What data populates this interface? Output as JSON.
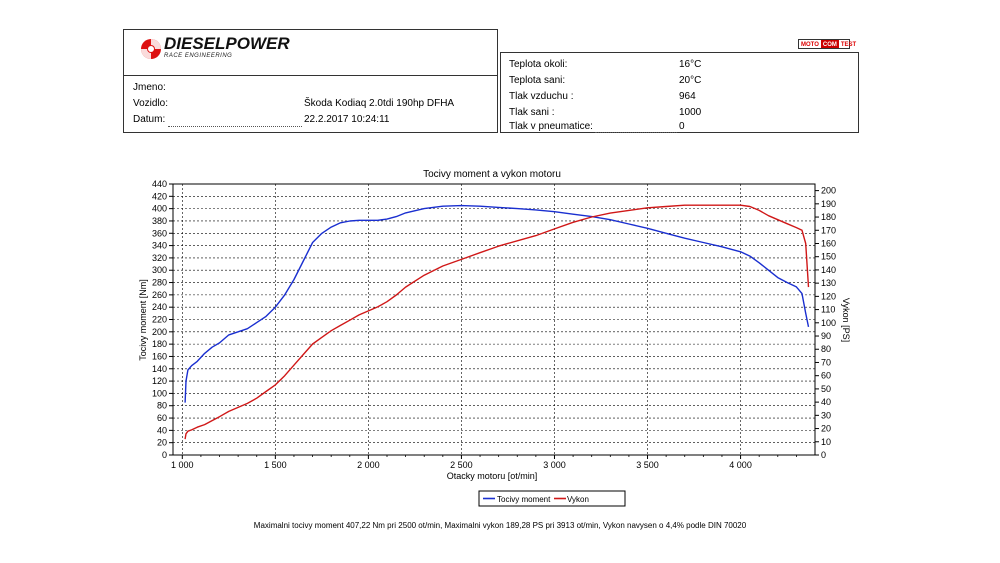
{
  "logo": {
    "brand": "DIESELPOWER",
    "tagline": "RACE ENGINEERING"
  },
  "badge": {
    "part1": "MOTO",
    "part2": "COM",
    "part3": "TEST"
  },
  "vehicle_info": {
    "name_label": "Jmeno:",
    "name_value": "",
    "vehicle_label": "Vozidlo:",
    "vehicle_value": "Škoda Kodiaq 2.0tdi 190hp DFHA",
    "date_label": "Datum:",
    "date_value": "22.2.2017 10:24:11"
  },
  "conditions": [
    {
      "label": "Teplota okoli:",
      "value": "16°C"
    },
    {
      "label": "Teplota sani:",
      "value": "20°C"
    },
    {
      "label": "Tlak vzduchu :",
      "value": "964"
    },
    {
      "label": "Tlak sani :",
      "value": "1000"
    },
    {
      "label": "Tlak v pneumatice:",
      "value": "0"
    }
  ],
  "chart_data": {
    "type": "line",
    "title": "Tocivy moment a vykon motoru",
    "xlabel": "Otacky motoru [ot/min]",
    "ylabel": "Tocivy moment [Nm]",
    "y2label": "Vykon [PS]",
    "xlim": [
      950,
      4400
    ],
    "ylim": [
      0,
      440
    ],
    "y2lim": [
      0,
      205
    ],
    "x_ticks": [
      1000,
      1500,
      2000,
      2500,
      3000,
      3500,
      4000
    ],
    "x_tick_labels": [
      "1 000",
      "1 500",
      "2 000",
      "2 500",
      "3 000",
      "3 500",
      "4 000"
    ],
    "y_ticks": [
      0,
      20,
      40,
      60,
      80,
      100,
      120,
      140,
      160,
      180,
      200,
      220,
      240,
      260,
      280,
      300,
      320,
      340,
      360,
      380,
      400,
      420,
      440
    ],
    "y2_ticks": [
      0,
      10,
      20,
      30,
      40,
      50,
      60,
      70,
      80,
      90,
      100,
      110,
      120,
      130,
      140,
      150,
      160,
      170,
      180,
      190,
      200
    ],
    "grid": true,
    "legend_position": "bottom-center",
    "series": [
      {
        "name": "Tocivy moment",
        "color": "#1a2fd0",
        "axis": "left",
        "x": [
          1015,
          1020,
          1030,
          1050,
          1080,
          1120,
          1160,
          1200,
          1250,
          1300,
          1350,
          1400,
          1450,
          1500,
          1550,
          1600,
          1650,
          1700,
          1750,
          1800,
          1850,
          1900,
          1950,
          2000,
          2050,
          2100,
          2150,
          2200,
          2300,
          2400,
          2500,
          2600,
          2700,
          2800,
          2900,
          3000,
          3100,
          3200,
          3300,
          3400,
          3500,
          3600,
          3700,
          3800,
          3900,
          4000,
          4050,
          4100,
          4150,
          4200,
          4250,
          4300,
          4330,
          4350,
          4365
        ],
        "values": [
          85,
          120,
          138,
          145,
          152,
          165,
          175,
          182,
          195,
          200,
          205,
          215,
          225,
          240,
          260,
          285,
          315,
          345,
          360,
          370,
          377,
          380,
          381,
          381,
          381,
          383,
          387,
          393,
          400,
          404,
          405,
          404,
          402,
          400,
          398,
          395,
          391,
          387,
          382,
          375,
          368,
          360,
          352,
          345,
          338,
          330,
          323,
          312,
          300,
          288,
          280,
          273,
          262,
          230,
          208
        ]
      },
      {
        "name": "Vykon",
        "color": "#d01818",
        "axis": "right",
        "x": [
          1015,
          1020,
          1030,
          1050,
          1080,
          1120,
          1160,
          1200,
          1250,
          1300,
          1350,
          1400,
          1450,
          1500,
          1550,
          1600,
          1650,
          1700,
          1750,
          1800,
          1850,
          1900,
          1950,
          2000,
          2050,
          2100,
          2150,
          2200,
          2300,
          2400,
          2500,
          2600,
          2700,
          2800,
          2900,
          3000,
          3100,
          3200,
          3300,
          3400,
          3500,
          3600,
          3700,
          3800,
          3900,
          3950,
          4000,
          4050,
          4100,
          4150,
          4200,
          4250,
          4300,
          4330,
          4350,
          4365
        ],
        "values": [
          12,
          16,
          18,
          19,
          21,
          23,
          26,
          29,
          33,
          36,
          39,
          43,
          48,
          53,
          60,
          68,
          76,
          84,
          89,
          94,
          98,
          102,
          106,
          109,
          112,
          116,
          121,
          127,
          136,
          143,
          148,
          153,
          158,
          162,
          166,
          171,
          176,
          180,
          183,
          185,
          187,
          188,
          189,
          189,
          189,
          189,
          189,
          188,
          185,
          181,
          178,
          175,
          172,
          170,
          160,
          127
        ]
      }
    ]
  },
  "summary": "Maximalni tocivy moment 407,22 Nm pri 2500 ot/min,  Maximalni vykon 189,28 PS pri 3913 ot/min,  Vykon navysen o 4,4% podle DIN 70020"
}
